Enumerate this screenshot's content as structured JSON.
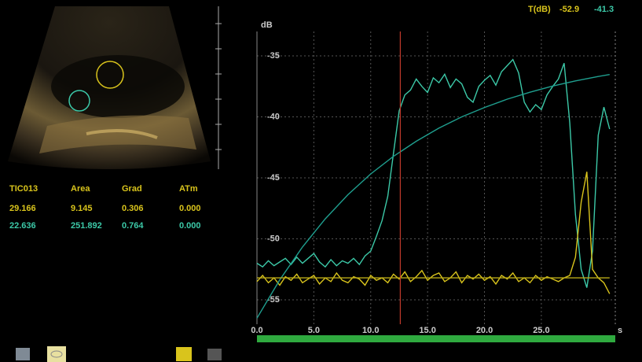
{
  "readout": {
    "label": "T(dB)",
    "value_a": "-52.9",
    "value_b": "-41.3"
  },
  "table": {
    "header": [
      "TIC013",
      "Area",
      "Grad",
      "ATm"
    ],
    "rows": [
      [
        "29.166",
        "9.145",
        "0.306",
        "0.000"
      ],
      [
        "22.636",
        "251.892",
        "0.764",
        "0.000"
      ]
    ]
  },
  "chart_data": {
    "type": "line",
    "y_label": "dB",
    "x_label": "s",
    "xlim": [
      0,
      31.5
    ],
    "ylim": [
      -57,
      -33
    ],
    "xticks": [
      {
        "value": 0,
        "label": "0.0"
      },
      {
        "value": 5,
        "label": "5.0"
      },
      {
        "value": 10,
        "label": "10.0"
      },
      {
        "value": 15,
        "label": "15.0"
      },
      {
        "value": 20,
        "label": "20.0"
      },
      {
        "value": 25,
        "label": "25.0"
      }
    ],
    "yticks": [
      -35,
      -40,
      -45,
      -50,
      -55
    ],
    "grid": true,
    "cursor_x": 12.6,
    "cursor_color": "#c0392b",
    "series": [
      {
        "color": "#3cc9a8",
        "x": [
          0,
          0.5,
          1,
          1.5,
          2,
          2.5,
          3,
          3.5,
          4,
          4.5,
          5,
          5.5,
          6,
          6.5,
          7,
          7.5,
          8,
          8.5,
          9,
          9.5,
          10,
          10.5,
          11,
          11.5,
          12,
          12.5,
          13,
          13.5,
          14,
          14.5,
          15,
          15.5,
          16,
          16.5,
          17,
          17.5,
          18,
          18.5,
          19,
          19.5,
          20,
          20.5,
          21,
          21.5,
          22,
          22.5,
          23,
          23.5,
          24,
          24.5,
          25,
          25.5,
          26,
          26.5,
          27,
          27.5,
          28,
          28.5,
          29,
          29.5,
          30,
          30.5,
          31
        ],
        "values": [
          -52.0,
          -52.3,
          -51.8,
          -52.2,
          -51.9,
          -51.6,
          -52.1,
          -51.5,
          -52.0,
          -51.6,
          -51.2,
          -51.9,
          -52.3,
          -51.7,
          -52.2,
          -51.8,
          -52.0,
          -51.6,
          -52.1,
          -51.4,
          -51.0,
          -49.8,
          -48.5,
          -46.5,
          -43.0,
          -39.5,
          -38.2,
          -37.8,
          -36.9,
          -37.5,
          -38.0,
          -36.8,
          -37.2,
          -36.5,
          -37.6,
          -36.9,
          -37.3,
          -38.4,
          -38.8,
          -37.5,
          -37.0,
          -36.6,
          -37.4,
          -36.3,
          -35.8,
          -35.3,
          -36.4,
          -38.8,
          -39.6,
          -39.0,
          -39.4,
          -38.2,
          -37.5,
          -36.9,
          -35.6,
          -40.5,
          -48.0,
          -52.5,
          -54.0,
          -51.0,
          -41.5,
          -39.2,
          -41.0
        ]
      },
      {
        "color": "#d9c41c",
        "x": [
          0,
          0.5,
          1,
          1.5,
          2,
          2.5,
          3,
          3.5,
          4,
          4.5,
          5,
          5.5,
          6,
          6.5,
          7,
          7.5,
          8,
          8.5,
          9,
          9.5,
          10,
          10.5,
          11,
          11.5,
          12,
          12.5,
          13,
          13.5,
          14,
          14.5,
          15,
          15.5,
          16,
          16.5,
          17,
          17.5,
          18,
          18.5,
          19,
          19.5,
          20,
          20.5,
          21,
          21.5,
          22,
          22.5,
          23,
          23.5,
          24,
          24.5,
          25,
          25.5,
          26,
          26.5,
          27,
          27.5,
          28,
          28.5,
          29,
          29.5,
          30,
          30.5,
          31
        ],
        "values": [
          -53.5,
          -53.0,
          -53.6,
          -53.2,
          -53.8,
          -53.1,
          -53.4,
          -52.9,
          -53.6,
          -53.3,
          -53.0,
          -53.7,
          -53.2,
          -53.5,
          -52.8,
          -53.4,
          -53.6,
          -53.1,
          -53.3,
          -53.8,
          -53.0,
          -53.4,
          -53.2,
          -53.6,
          -52.9,
          -53.3,
          -52.7,
          -53.5,
          -53.1,
          -52.6,
          -53.4,
          -53.0,
          -52.8,
          -53.5,
          -53.2,
          -52.7,
          -53.6,
          -53.0,
          -53.3,
          -52.9,
          -53.4,
          -53.1,
          -53.7,
          -53.0,
          -53.3,
          -52.8,
          -53.5,
          -53.2,
          -53.6,
          -53.0,
          -53.4,
          -53.1,
          -53.3,
          -53.5,
          -53.2,
          -53.0,
          -51.5,
          -47.0,
          -44.5,
          -52.5,
          -53.2,
          -53.6,
          -54.5
        ]
      },
      {
        "color": "#1f9f8f",
        "x": [
          0,
          2,
          4,
          6,
          8,
          10,
          12,
          14,
          16,
          18,
          20,
          22,
          24,
          26,
          28,
          30,
          31
        ],
        "values": [
          -56.5,
          -53.36,
          -50.67,
          -48.36,
          -46.38,
          -44.68,
          -43.24,
          -42.0,
          -40.92,
          -40.0,
          -39.23,
          -38.55,
          -37.98,
          -37.47,
          -37.05,
          -36.69,
          -36.53
        ]
      },
      {
        "color": "#b8a818",
        "x": [
          0,
          31
        ],
        "values": [
          -53.2,
          -53.2
        ]
      }
    ]
  }
}
